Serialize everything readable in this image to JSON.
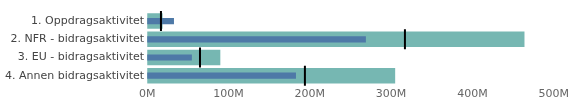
{
  "chart_data": {
    "type": "bar",
    "orientation": "horizontal",
    "categories": [
      "1. Oppdragsaktivitet",
      "2. NFR - bidragsaktivitet",
      "3. EU - bidragsaktivitet",
      "4. Annen bidragsaktivitet"
    ],
    "series": [
      {
        "color": "#76b7b2",
        "values": [
          19,
          464,
          90,
          305
        ]
      },
      {
        "color": "#4e79a7",
        "values": [
          33,
          269,
          55,
          183
        ]
      },
      {
        "type": "scatter",
        "marker": "line",
        "color": "#000000",
        "values": [
          17,
          317,
          65,
          194
        ]
      }
    ],
    "xlim": [
      0,
      500
    ],
    "xticks": [
      {
        "value": 0,
        "label": "0M"
      },
      {
        "value": 100,
        "label": "100M"
      },
      {
        "value": 200,
        "label": "200M"
      },
      {
        "value": 300,
        "label": "300M"
      },
      {
        "value": 400,
        "label": "400M"
      },
      {
        "value": 500,
        "label": "500M"
      }
    ],
    "grid": false
  }
}
